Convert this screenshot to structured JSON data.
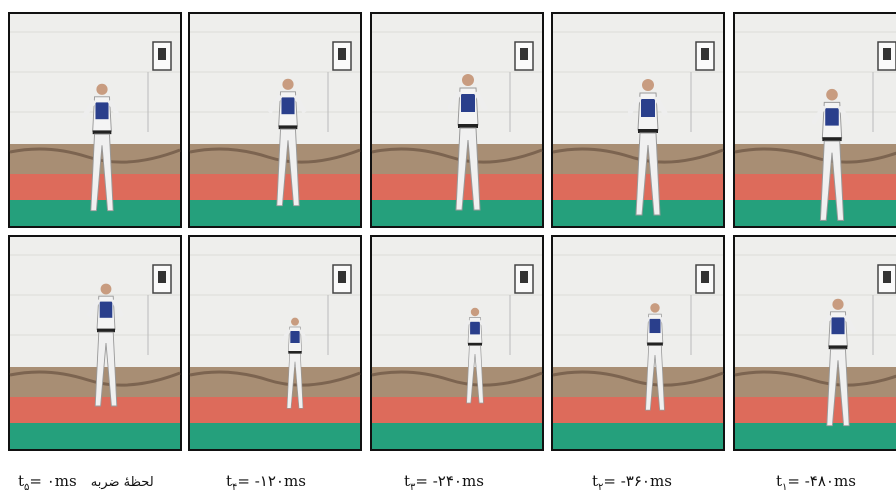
{
  "captions": [
    {
      "t": "t",
      "sub": "۵",
      "rest": "= ۰ms",
      "note": "لحظهٔ ضربه"
    },
    {
      "t": "t",
      "sub": "۴",
      "rest": "= -۱۲۰ms"
    },
    {
      "t": "t",
      "sub": "۳",
      "rest": "= -۲۴۰ms"
    },
    {
      "t": "t",
      "sub": "۲",
      "rest": "= -۳۶۰ms"
    },
    {
      "t": "t",
      "sub": "۱",
      "rest": "= -۴۸۰ms"
    }
  ]
}
